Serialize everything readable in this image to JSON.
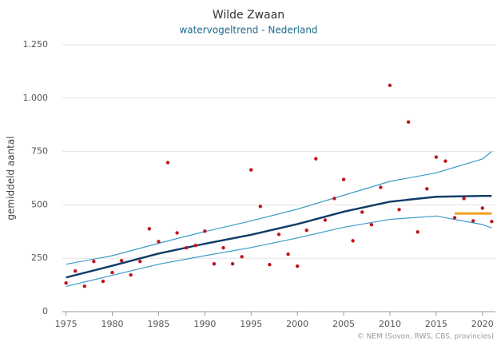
{
  "chart_data": {
    "type": "scatter",
    "title": "Wilde Zwaan",
    "subtitle": "watervogeltrend - Nederland",
    "y_label": "gemiddeld aantal",
    "credit": "© NEM (Sovon, RWS, CBS, provincies)",
    "x": [
      1975,
      1976,
      1977,
      1978,
      1979,
      1980,
      1981,
      1982,
      1983,
      1984,
      1985,
      1986,
      1987,
      1988,
      1989,
      1990,
      1991,
      1992,
      1993,
      1994,
      1995,
      1996,
      1997,
      1998,
      1999,
      2000,
      2001,
      2002,
      2003,
      2004,
      2005,
      2006,
      2007,
      2008,
      2009,
      2010,
      2011,
      2012,
      2013,
      2014,
      2015,
      2016,
      2017,
      2018,
      2019,
      2020,
      2021
    ],
    "values": [
      134,
      190,
      119,
      235,
      142,
      183,
      239,
      172,
      235,
      388,
      328,
      698,
      369,
      299,
      310,
      377,
      224,
      299,
      224,
      257,
      664,
      493,
      220,
      362,
      269,
      213,
      381,
      716,
      429,
      530,
      619,
      332,
      466,
      407,
      582,
      1060,
      478,
      888,
      373,
      575,
      724,
      705,
      440,
      530,
      425,
      485,
      422
    ],
    "color": "#c0141c",
    "lines": [
      {
        "x": [
          1975,
          1980,
          1985,
          1990,
          1995,
          2000,
          2005,
          2010,
          2015,
          2020,
          2021
        ],
        "values": [
          222,
          262,
          320,
          375,
          425,
          480,
          545,
          610,
          650,
          715,
          750
        ],
        "color": "#3a9ac9"
      },
      {
        "x": [
          1975,
          1980,
          1985,
          1990,
          1995,
          2000,
          2005,
          2010,
          2015,
          2020,
          2021
        ],
        "values": [
          118,
          170,
          222,
          262,
          300,
          345,
          395,
          432,
          448,
          408,
          392
        ],
        "color": "#3a9ac9"
      },
      {
        "x": [
          1975,
          1980,
          1985,
          1990,
          1995,
          2000,
          2005,
          2010,
          2015,
          2020,
          2021
        ],
        "values": [
          160,
          215,
          272,
          318,
          360,
          410,
          468,
          515,
          538,
          542,
          542
        ],
        "color": "#0d3b66"
      },
      {
        "x": [
          2017,
          2021
        ],
        "values": [
          460,
          460
        ],
        "color": "#f0a020"
      }
    ],
    "xlim": [
      1974.6,
      2021.4
    ],
    "ylim": [
      0,
      1250
    ],
    "xticks": [
      1975,
      1980,
      1985,
      1990,
      1995,
      2000,
      2005,
      2010,
      2015,
      2020
    ],
    "yticks": [
      0,
      250,
      500,
      750,
      {
        "value": 1000,
        "label": "1.000"
      },
      {
        "value": 1250,
        "label": "1.250"
      }
    ],
    "grid": true
  }
}
